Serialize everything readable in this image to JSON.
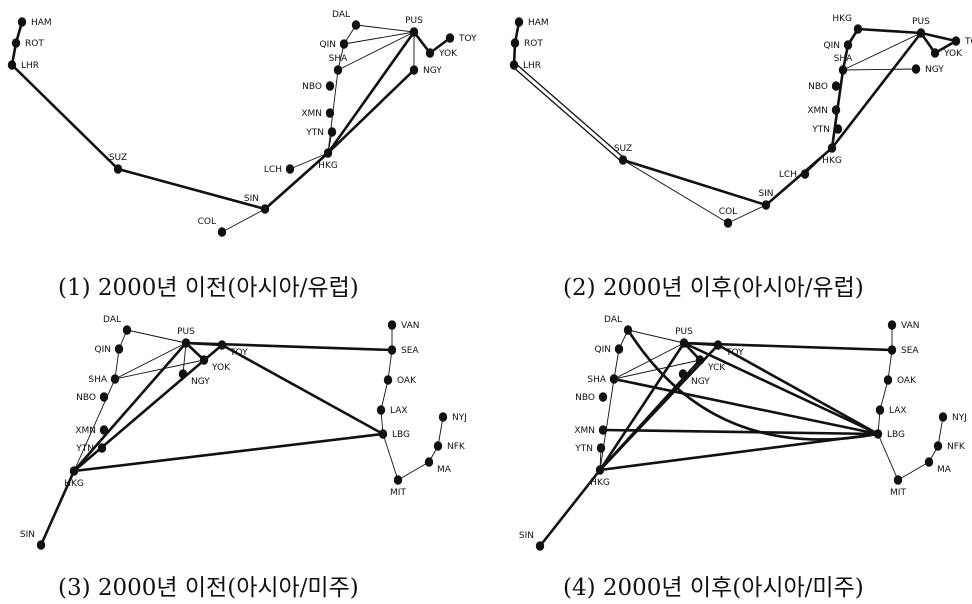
{
  "colors": {
    "ink": "#111111",
    "background": "#ffffff"
  },
  "panels": [
    {
      "id": "p1",
      "caption": "(1) 2000년 이전(아시아/유럽)",
      "nodes": [
        {
          "id": "HAM",
          "label": "HAM"
        },
        {
          "id": "ROT",
          "label": "ROT"
        },
        {
          "id": "LHR",
          "label": "LHR"
        },
        {
          "id": "SUZ",
          "label": "SUZ"
        },
        {
          "id": "SIN",
          "label": "SIN"
        },
        {
          "id": "COL",
          "label": "COL"
        },
        {
          "id": "LCH",
          "label": "LCH"
        },
        {
          "id": "HKG",
          "label": "HKG"
        },
        {
          "id": "YTN",
          "label": "YTN"
        },
        {
          "id": "XMN",
          "label": "XMN"
        },
        {
          "id": "NBO",
          "label": "NBO"
        },
        {
          "id": "SHA",
          "label": "SHA"
        },
        {
          "id": "QIN",
          "label": "QIN"
        },
        {
          "id": "DAL",
          "label": "DAL"
        },
        {
          "id": "PUS",
          "label": "PUS"
        },
        {
          "id": "TOY",
          "label": "TOY"
        },
        {
          "id": "YOK",
          "label": "YOK"
        },
        {
          "id": "NGY",
          "label": "NGY"
        }
      ],
      "links": [
        {
          "from": "HAM",
          "to": "ROT",
          "weight": "heavy"
        },
        {
          "from": "ROT",
          "to": "LHR",
          "weight": "heavy"
        },
        {
          "from": "LHR",
          "to": "SUZ",
          "weight": "heavy"
        },
        {
          "from": "SUZ",
          "to": "SIN",
          "weight": "heavy"
        },
        {
          "from": "COL",
          "to": "SIN",
          "weight": "thin"
        },
        {
          "from": "SIN",
          "to": "HKG",
          "weight": "heavy"
        },
        {
          "from": "LCH",
          "to": "HKG",
          "weight": "thin"
        },
        {
          "from": "HKG",
          "to": "YTN",
          "weight": "thin"
        },
        {
          "from": "HKG",
          "to": "PUS",
          "weight": "heavy"
        },
        {
          "from": "HKG",
          "to": "NGY",
          "weight": "heavy"
        },
        {
          "from": "HKG",
          "to": "SHA",
          "weight": "thin"
        },
        {
          "from": "SHA",
          "to": "QIN",
          "weight": "thin"
        },
        {
          "from": "QIN",
          "to": "DAL",
          "weight": "thin"
        },
        {
          "from": "DAL",
          "to": "PUS",
          "weight": "thin"
        },
        {
          "from": "SHA",
          "to": "PUS",
          "weight": "thin"
        },
        {
          "from": "QIN",
          "to": "PUS",
          "weight": "thin"
        },
        {
          "from": "PUS",
          "to": "YOK",
          "weight": "heavy"
        },
        {
          "from": "YOK",
          "to": "TOY",
          "weight": "heavy"
        },
        {
          "from": "PUS",
          "to": "NGY",
          "weight": "thin"
        }
      ]
    },
    {
      "id": "p2",
      "caption": "(2) 2000년 이후(아시아/유럽)",
      "nodes": [
        {
          "id": "HAM",
          "label": "HAM"
        },
        {
          "id": "ROT",
          "label": "ROT"
        },
        {
          "id": "LHR",
          "label": "LHR"
        },
        {
          "id": "SUZ",
          "label": "SUZ"
        },
        {
          "id": "SIN",
          "label": "SIN"
        },
        {
          "id": "COL",
          "label": "COL"
        },
        {
          "id": "LCH",
          "label": "LCH"
        },
        {
          "id": "HKG",
          "label": "HKG"
        },
        {
          "id": "YTN",
          "label": "YTN"
        },
        {
          "id": "XMN",
          "label": "XMN"
        },
        {
          "id": "NBO",
          "label": "NBO"
        },
        {
          "id": "SHA",
          "label": "SHA"
        },
        {
          "id": "QIN",
          "label": "QIN"
        },
        {
          "id": "HKGN",
          "label": "HKG"
        },
        {
          "id": "PUS",
          "label": "PUS"
        },
        {
          "id": "TOY",
          "label": "TOY"
        },
        {
          "id": "YOK",
          "label": "YOK"
        },
        {
          "id": "NGY",
          "label": "NGY"
        }
      ],
      "links": [
        {
          "from": "HAM",
          "to": "ROT",
          "weight": "heavy"
        },
        {
          "from": "ROT",
          "to": "LHR",
          "weight": "heavy"
        },
        {
          "from": "LHR",
          "to": "SUZ",
          "weight": "double"
        },
        {
          "from": "SUZ",
          "to": "SIN",
          "weight": "heavy"
        },
        {
          "from": "SUZ",
          "to": "COL",
          "weight": "thin"
        },
        {
          "from": "COL",
          "to": "SIN",
          "weight": "thin"
        },
        {
          "from": "SIN",
          "to": "HKG",
          "weight": "heavy"
        },
        {
          "from": "LCH",
          "to": "HKG",
          "weight": "thin"
        },
        {
          "from": "HKG",
          "to": "PUS",
          "weight": "heavy"
        },
        {
          "from": "HKG",
          "to": "SHA",
          "weight": "heavy"
        },
        {
          "from": "SHA",
          "to": "PUS",
          "weight": "thin"
        },
        {
          "from": "SHA",
          "to": "NGY",
          "weight": "thin"
        },
        {
          "from": "SHA",
          "to": "QIN",
          "weight": "heavy"
        },
        {
          "from": "QIN",
          "to": "HKGN",
          "weight": "heavy"
        },
        {
          "from": "HKGN",
          "to": "PUS",
          "weight": "heavy"
        },
        {
          "from": "PUS",
          "to": "YOK",
          "weight": "heavy"
        },
        {
          "from": "YOK",
          "to": "TOY",
          "weight": "heavy"
        },
        {
          "from": "PUS",
          "to": "TOY",
          "weight": "heavy"
        }
      ]
    },
    {
      "id": "p3",
      "caption": "(3) 2000년 이전(아시아/미주)",
      "nodes": [
        {
          "id": "DAL",
          "label": "DAL"
        },
        {
          "id": "PUS",
          "label": "PUS"
        },
        {
          "id": "QIN",
          "label": "QIN"
        },
        {
          "id": "SHA",
          "label": "SHA"
        },
        {
          "id": "NBO",
          "label": "NBO"
        },
        {
          "id": "XMN",
          "label": "XMN"
        },
        {
          "id": "YTN",
          "label": "YTN"
        },
        {
          "id": "HKG",
          "label": "HKG"
        },
        {
          "id": "SIN",
          "label": "SIN"
        },
        {
          "id": "TOY",
          "label": "TOY"
        },
        {
          "id": "YOK",
          "label": "YOK"
        },
        {
          "id": "NGY",
          "label": "NGY"
        },
        {
          "id": "VAN",
          "label": "VAN"
        },
        {
          "id": "SEA",
          "label": "SEA"
        },
        {
          "id": "OAK",
          "label": "OAK"
        },
        {
          "id": "LAX",
          "label": "LAX"
        },
        {
          "id": "LBG",
          "label": "LBG"
        },
        {
          "id": "NYJ",
          "label": "NYJ"
        },
        {
          "id": "NFK",
          "label": "NFK"
        },
        {
          "id": "MA",
          "label": "MA"
        },
        {
          "id": "MIT",
          "label": "MIT"
        }
      ],
      "links": [
        {
          "from": "SIN",
          "to": "HKG",
          "weight": "heavy"
        },
        {
          "from": "HKG",
          "to": "PUS",
          "weight": "heavy"
        },
        {
          "from": "HKG",
          "to": "TOY",
          "weight": "heavy"
        },
        {
          "from": "HKG",
          "to": "LBG",
          "weight": "heavy"
        },
        {
          "from": "HKG",
          "to": "YTN",
          "weight": "thin"
        },
        {
          "from": "HKG",
          "to": "SHA",
          "weight": "thin"
        },
        {
          "from": "SHA",
          "to": "QIN",
          "weight": "thin"
        },
        {
          "from": "QIN",
          "to": "DAL",
          "weight": "thin"
        },
        {
          "from": "DAL",
          "to": "PUS",
          "weight": "thin"
        },
        {
          "from": "SHA",
          "to": "PUS",
          "weight": "thin"
        },
        {
          "from": "SHA",
          "to": "YOK",
          "weight": "thin"
        },
        {
          "from": "PUS",
          "to": "YOK",
          "weight": "heavy"
        },
        {
          "from": "PUS",
          "to": "TOY",
          "weight": "heavy"
        },
        {
          "from": "PUS",
          "to": "NGY",
          "weight": "thin"
        },
        {
          "from": "PUS",
          "to": "SEA",
          "weight": "heavy"
        },
        {
          "from": "TOY",
          "to": "LBG",
          "weight": "heavy"
        },
        {
          "from": "VAN",
          "to": "SEA",
          "weight": "thin"
        },
        {
          "from": "SEA",
          "to": "OAK",
          "weight": "thin"
        },
        {
          "from": "OAK",
          "to": "LAX",
          "weight": "thin"
        },
        {
          "from": "LAX",
          "to": "LBG",
          "weight": "thin"
        },
        {
          "from": "LBG",
          "to": "MIT",
          "weight": "thin"
        },
        {
          "from": "MIT",
          "to": "MA",
          "weight": "thin"
        },
        {
          "from": "MA",
          "to": "NFK",
          "weight": "thin"
        },
        {
          "from": "NFK",
          "to": "NYJ",
          "weight": "thin"
        }
      ]
    },
    {
      "id": "p4",
      "caption": "(4) 2000년 이후(아시아/미주)",
      "nodes": [
        {
          "id": "DAL",
          "label": "DAL"
        },
        {
          "id": "PUS",
          "label": "PUS"
        },
        {
          "id": "QIN",
          "label": "QIN"
        },
        {
          "id": "SHA",
          "label": "SHA"
        },
        {
          "id": "NBO",
          "label": "NBO"
        },
        {
          "id": "XMN",
          "label": "XMN"
        },
        {
          "id": "YTN",
          "label": "YTN"
        },
        {
          "id": "HKG",
          "label": "HKG"
        },
        {
          "id": "SIN",
          "label": "SIN"
        },
        {
          "id": "TOY",
          "label": "TOY"
        },
        {
          "id": "YOK",
          "label": "YCK"
        },
        {
          "id": "NGY",
          "label": "NGY"
        },
        {
          "id": "VAN",
          "label": "VAN"
        },
        {
          "id": "SEA",
          "label": "SEA"
        },
        {
          "id": "OAK",
          "label": "OAK"
        },
        {
          "id": "LAX",
          "label": "LAX"
        },
        {
          "id": "LBG",
          "label": "LBG"
        },
        {
          "id": "NYJ",
          "label": "NYJ"
        },
        {
          "id": "NFK",
          "label": "NFK"
        },
        {
          "id": "MA",
          "label": "MA"
        },
        {
          "id": "MIT",
          "label": "MIT"
        }
      ],
      "links": [
        {
          "from": "SIN",
          "to": "HKG",
          "weight": "heavy"
        },
        {
          "from": "HKG",
          "to": "PUS",
          "weight": "heavy"
        },
        {
          "from": "HKG",
          "to": "TOY",
          "weight": "heavy"
        },
        {
          "from": "HKG",
          "to": "LBG",
          "weight": "heavy"
        },
        {
          "from": "HKG",
          "to": "YTN",
          "weight": "thin"
        },
        {
          "from": "HKG",
          "to": "SHA",
          "weight": "thin"
        },
        {
          "from": "HKG",
          "to": "YOK",
          "weight": "heavy"
        },
        {
          "from": "XMN",
          "to": "LBG",
          "weight": "heavy"
        },
        {
          "from": "SHA",
          "to": "LBG",
          "weight": "heavy"
        },
        {
          "from": "DAL",
          "to": "LBG",
          "weight": "heavy-curve"
        },
        {
          "from": "PUS",
          "to": "LBG",
          "weight": "heavy"
        },
        {
          "from": "TOY",
          "to": "LBG",
          "weight": "heavy"
        },
        {
          "from": "SHA",
          "to": "QIN",
          "weight": "thin"
        },
        {
          "from": "QIN",
          "to": "DAL",
          "weight": "thin"
        },
        {
          "from": "DAL",
          "to": "PUS",
          "weight": "thin"
        },
        {
          "from": "SHA",
          "to": "PUS",
          "weight": "thin"
        },
        {
          "from": "SHA",
          "to": "YOK",
          "weight": "thin"
        },
        {
          "from": "PUS",
          "to": "YOK",
          "weight": "heavy"
        },
        {
          "from": "PUS",
          "to": "TOY",
          "weight": "heavy"
        },
        {
          "from": "PUS",
          "to": "SEA",
          "weight": "heavy"
        },
        {
          "from": "VAN",
          "to": "SEA",
          "weight": "thin"
        },
        {
          "from": "SEA",
          "to": "OAK",
          "weight": "thin"
        },
        {
          "from": "OAK",
          "to": "LAX",
          "weight": "thin"
        },
        {
          "from": "LAX",
          "to": "LBG",
          "weight": "thin"
        },
        {
          "from": "LBG",
          "to": "MIT",
          "weight": "thin"
        },
        {
          "from": "MIT",
          "to": "MA",
          "weight": "thin"
        },
        {
          "from": "MA",
          "to": "NFK",
          "weight": "thin"
        },
        {
          "from": "NFK",
          "to": "NYJ",
          "weight": "thin"
        }
      ]
    }
  ]
}
